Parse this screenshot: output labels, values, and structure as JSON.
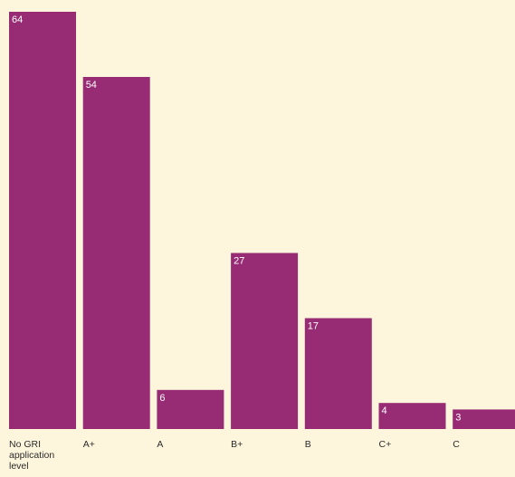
{
  "chart_data": {
    "type": "bar",
    "title": "",
    "xlabel": "",
    "ylabel": "",
    "categories": [
      "No GRI application level",
      "A+",
      "A",
      "B+",
      "B",
      "C+",
      "C"
    ],
    "values": [
      64,
      54,
      6,
      27,
      17,
      4,
      3
    ],
    "ylim": [
      0,
      64
    ],
    "grid": false,
    "bar_color": "#982c74",
    "label_color": "#ffffff",
    "background": "#fdf6dc"
  }
}
